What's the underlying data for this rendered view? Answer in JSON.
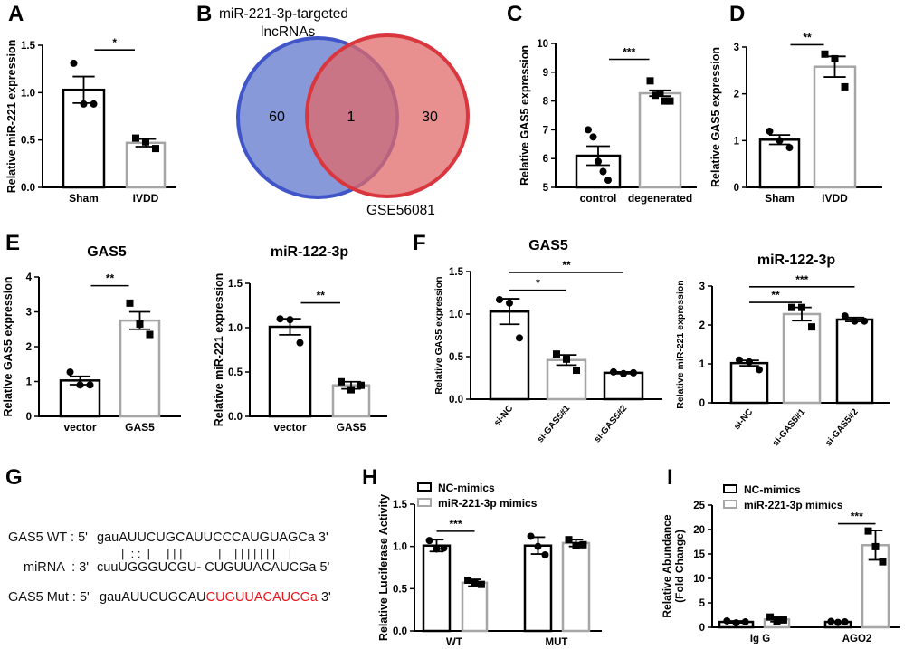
{
  "panel_labels": [
    "A",
    "B",
    "C",
    "D",
    "E",
    "F",
    "G",
    "H",
    "I"
  ],
  "venn": {
    "left_title_line1": "miR-221-3p-targeted",
    "left_title_line2": "lncRNAs",
    "right_title": "GSE56081",
    "left_only": "60",
    "overlap": "1",
    "right_only": "30",
    "left_color": "#6a80cf",
    "right_color": "#e06a6a"
  },
  "sequences": {
    "wt_label": "GAS5 WT : 5'",
    "wt_seq": "gauAUUCUGCAUUCCCAUGUAGCa 3'",
    "pairing": "|  : :  |     | | |           |    | | | | | | |    |",
    "mirna_label": "miRNA  : 3'",
    "mirna_seq": "cuuUGGGUCGU- CUGUUACAUCGa 5'",
    "mut_label": "GAS5 Mut : 5'",
    "mut_seq_black": "gauAUUCUGCAU",
    "mut_seq_red": "CUGUUACAUCGa",
    "mut_seq_end": " 3'",
    "mutation_color": "#e8141c"
  },
  "chart_data": [
    {
      "id": "A",
      "type": "bar",
      "title": "",
      "ylabel": "Relative miR-221 expression",
      "ylim": [
        0,
        1.5
      ],
      "yticks": [
        "0.0",
        "0.5",
        "1.0",
        "1.5"
      ],
      "bars": [
        {
          "label": "Sham",
          "value": 1.03,
          "error": 0.14,
          "points": [
            1.31,
            0.88,
            0.88
          ],
          "color": "#000000",
          "marker": "circle"
        },
        {
          "label": "IVDD",
          "value": 0.47,
          "error": 0.04,
          "points": [
            0.52,
            0.48,
            0.41
          ],
          "color": "#a6a6a6",
          "marker": "square"
        }
      ],
      "significance": [
        {
          "from": 0,
          "to": 1,
          "y": 1.45,
          "label": "*"
        }
      ]
    },
    {
      "id": "C",
      "type": "bar",
      "title": "",
      "ylabel": "Relative GAS5 expression",
      "ylim": [
        5,
        10
      ],
      "yticks": [
        "5",
        "6",
        "7",
        "8",
        "9",
        "10"
      ],
      "bars": [
        {
          "label": "control",
          "value": 6.1,
          "error": 0.33,
          "points": [
            7.0,
            6.75,
            5.9,
            5.55,
            5.25
          ],
          "color": "#000000",
          "marker": "circle"
        },
        {
          "label": "degenerated",
          "value": 8.27,
          "error": 0.1,
          "points": [
            8.7,
            8.2,
            8.27,
            8.0,
            8.0
          ],
          "color": "#a6a6a6",
          "marker": "square"
        }
      ],
      "significance": [
        {
          "from": 0,
          "to": 1,
          "y": 9.45,
          "label": "***"
        }
      ]
    },
    {
      "id": "D",
      "type": "bar",
      "title": "",
      "ylabel": "Relative GAS5 expression",
      "ylim": [
        0,
        3
      ],
      "yticks": [
        "0",
        "1",
        "2",
        "3"
      ],
      "bars": [
        {
          "label": "Sham",
          "value": 1.02,
          "error": 0.1,
          "points": [
            1.2,
            1.0,
            0.85
          ],
          "color": "#000000",
          "marker": "circle"
        },
        {
          "label": "IVDD",
          "value": 2.58,
          "error": 0.22,
          "points": [
            2.85,
            2.75,
            2.15
          ],
          "color": "#a6a6a6",
          "marker": "square"
        }
      ],
      "significance": [
        {
          "from": 0,
          "to": 1,
          "y": 3.05,
          "label": "**"
        }
      ]
    },
    {
      "id": "E1",
      "type": "bar",
      "title": "GAS5",
      "ylabel": "Relative GAS5 expression",
      "ylim": [
        0,
        4
      ],
      "yticks": [
        "0",
        "1",
        "2",
        "3",
        "4"
      ],
      "bars": [
        {
          "label": "vector",
          "value": 1.03,
          "error": 0.12,
          "points": [
            1.27,
            0.9,
            0.9
          ],
          "color": "#000000",
          "marker": "circle"
        },
        {
          "label": "GAS5",
          "value": 2.75,
          "error": 0.25,
          "points": [
            3.25,
            2.65,
            2.35
          ],
          "color": "#a6a6a6",
          "marker": "square"
        }
      ],
      "significance": [
        {
          "from": 0,
          "to": 1,
          "y": 3.75,
          "label": "**"
        }
      ]
    },
    {
      "id": "E2",
      "type": "bar",
      "title": "miR-122-3p",
      "ylabel": "Relative miR-221 expression",
      "ylim": [
        0,
        1.5
      ],
      "yticks": [
        "0.0",
        "0.5",
        "1.0",
        "1.5"
      ],
      "bars": [
        {
          "label": "vector",
          "value": 1.01,
          "error": 0.09,
          "points": [
            1.1,
            1.09,
            0.83
          ],
          "color": "#000000",
          "marker": "circle"
        },
        {
          "label": "GAS5",
          "value": 0.35,
          "error": 0.04,
          "points": [
            0.39,
            0.3,
            0.35
          ],
          "color": "#a6a6a6",
          "marker": "square"
        }
      ],
      "significance": [
        {
          "from": 0,
          "to": 1,
          "y": 1.28,
          "label": "**"
        }
      ]
    },
    {
      "id": "F1",
      "type": "bar",
      "title": "GAS5",
      "ylabel": "Relative GAS5 expression",
      "ylim": [
        0,
        1.5
      ],
      "rotate_xlabels": true,
      "yticks": [
        "0.0",
        "0.5",
        "1.0",
        "1.5"
      ],
      "bars": [
        {
          "label": "si-NC",
          "value": 1.03,
          "error": 0.15,
          "points": [
            1.17,
            1.13,
            0.72
          ],
          "color": "#000000",
          "marker": "circle"
        },
        {
          "label": "si-GAS5#1",
          "value": 0.46,
          "error": 0.06,
          "points": [
            0.53,
            0.47,
            0.34
          ],
          "color": "#a6a6a6",
          "marker": "square"
        },
        {
          "label": "si-GAS5#2",
          "value": 0.31,
          "error": 0.01,
          "points": [
            0.32,
            0.3,
            0.31
          ],
          "color": "#000000",
          "marker": "circle"
        }
      ],
      "significance": [
        {
          "from": 0,
          "to": 1,
          "y": 1.28,
          "label": "*"
        },
        {
          "from": 0,
          "to": 2,
          "y": 1.49,
          "label": "**"
        }
      ]
    },
    {
      "id": "F2",
      "type": "bar",
      "title": "miR-122-3p",
      "ylabel": "Relative miR-221 expression",
      "ylim": [
        0,
        3
      ],
      "rotate_xlabels": true,
      "yticks": [
        "0",
        "1",
        "2",
        "3"
      ],
      "bars": [
        {
          "label": "si-NC",
          "value": 1.02,
          "error": 0.07,
          "points": [
            1.1,
            1.05,
            0.85
          ],
          "color": "#000000",
          "marker": "circle"
        },
        {
          "label": "si-GAS5#1",
          "value": 2.28,
          "error": 0.17,
          "points": [
            2.45,
            2.45,
            1.95
          ],
          "color": "#a6a6a6",
          "marker": "square"
        },
        {
          "label": "si-GAS5#2",
          "value": 2.14,
          "error": 0.05,
          "points": [
            2.23,
            2.1,
            2.1
          ],
          "color": "#000000",
          "marker": "circle"
        }
      ],
      "significance": [
        {
          "from": 0,
          "to": 1,
          "y": 2.58,
          "label": "**"
        },
        {
          "from": 0,
          "to": 2,
          "y": 2.98,
          "label": "***"
        }
      ]
    },
    {
      "id": "H",
      "type": "bar",
      "title": "",
      "ylabel": "Relative Luciferase Activity",
      "ylim": [
        0,
        1.5
      ],
      "yticks": [
        "0.0",
        "0.5",
        "1.0",
        "1.5"
      ],
      "categories": [
        "WT",
        "MUT"
      ],
      "legend": [
        {
          "name": "NC-mimics",
          "color": "#000000"
        },
        {
          "name": "miR-221-3p mimics",
          "color": "#a6a6a6"
        }
      ],
      "bars": [
        {
          "value": 1.01,
          "error": 0.07,
          "points": [
            1.07,
            0.97,
            0.98
          ],
          "color": "#000000",
          "marker": "circle"
        },
        {
          "value": 0.57,
          "error": 0.04,
          "points": [
            0.6,
            0.56,
            0.55
          ],
          "color": "#a6a6a6",
          "marker": "square"
        },
        {
          "value": 1.01,
          "error": 0.1,
          "points": [
            1.12,
            1.0,
            0.9
          ],
          "color": "#000000",
          "marker": "circle"
        },
        {
          "value": 1.04,
          "error": 0.04,
          "points": [
            1.08,
            1.01,
            1.02
          ],
          "color": "#a6a6a6",
          "marker": "square"
        }
      ],
      "significance": [
        {
          "from": 0,
          "to": 1,
          "y": 1.18,
          "label": "***"
        }
      ]
    },
    {
      "id": "I",
      "type": "bar",
      "title": "",
      "ylabel": "Relative Abundance",
      "ylabel2": "(Fold Change)",
      "ylim": [
        0,
        25
      ],
      "yticks": [
        "0",
        "5",
        "10",
        "15",
        "20",
        "25"
      ],
      "categories": [
        "Ig G",
        "AGO2"
      ],
      "legend": [
        {
          "name": "NC-mimics",
          "color": "#000000"
        },
        {
          "name": "miR-221-3p mimics",
          "color": "#a6a6a6"
        }
      ],
      "bars": [
        {
          "value": 1.1,
          "error": 0.2,
          "points": [
            1.3,
            0.9,
            1.1
          ],
          "color": "#000000",
          "marker": "circle"
        },
        {
          "value": 1.6,
          "error": 0.45,
          "points": [
            2.1,
            1.2,
            1.5
          ],
          "color": "#a6a6a6",
          "marker": "square"
        },
        {
          "value": 1.1,
          "error": 0.1,
          "points": [
            1.2,
            1.0,
            1.1
          ],
          "color": "#000000",
          "marker": "circle"
        },
        {
          "value": 16.8,
          "error": 3.0,
          "points": [
            19.7,
            16.5,
            13.4
          ],
          "color": "#a6a6a6",
          "marker": "square"
        }
      ],
      "significance": [
        {
          "from": 2,
          "to": 3,
          "y": 21.2,
          "label": "***"
        }
      ]
    }
  ]
}
